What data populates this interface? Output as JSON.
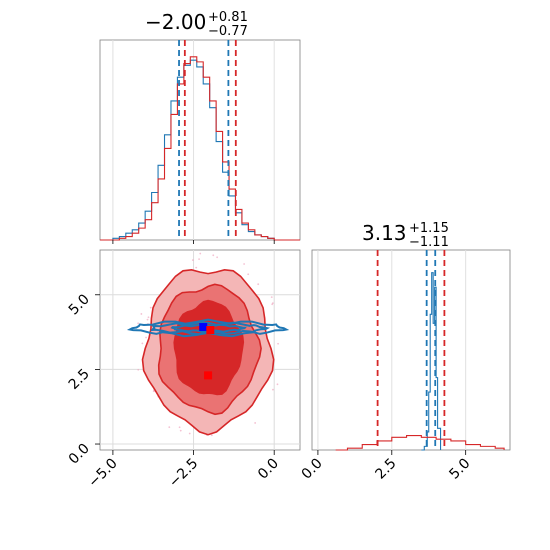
{
  "chart_data": [
    {
      "panel": "top-left",
      "type": "histogram",
      "title": {
        "value": "−2.00",
        "plus": "+0.81",
        "minus": "−0.77"
      },
      "xlim": [
        -5.4,
        0.8
      ],
      "grid": true,
      "bins": [
        -5.4,
        -5.2,
        -5.0,
        -4.8,
        -4.6,
        -4.4,
        -4.2,
        -4.0,
        -3.8,
        -3.6,
        -3.4,
        -3.2,
        -3.0,
        -2.8,
        -2.6,
        -2.4,
        -2.2,
        -2.0,
        -1.8,
        -1.6,
        -1.4,
        -1.2,
        -1.0,
        -0.8,
        -0.6,
        -0.4,
        -0.2,
        0.0,
        0.2,
        0.4,
        0.6,
        0.8
      ],
      "series": [
        {
          "color": "#1f77b4",
          "values": [
            0,
            0,
            1,
            2,
            4,
            6,
            10,
            17,
            28,
            44,
            62,
            82,
            96,
            103,
            106,
            102,
            92,
            78,
            58,
            40,
            26,
            16,
            9,
            5,
            3,
            2,
            1,
            0,
            0,
            0,
            0
          ]
        },
        {
          "color": "#d62728",
          "values": [
            0,
            0,
            0,
            1,
            2,
            4,
            7,
            12,
            22,
            36,
            54,
            74,
            92,
            104,
            108,
            105,
            96,
            82,
            64,
            46,
            30,
            18,
            10,
            6,
            3,
            2,
            1,
            0,
            0,
            0,
            0
          ]
        }
      ],
      "vlines": [
        {
          "x": -2.95,
          "color": "#1f77b4"
        },
        {
          "x": -2.77,
          "color": "#d62728"
        },
        {
          "x": -1.42,
          "color": "#1f77b4"
        },
        {
          "x": -1.19,
          "color": "#d62728"
        }
      ]
    },
    {
      "panel": "bottom-right",
      "type": "histogram",
      "title": {
        "value": "3.13",
        "plus": "+1.15",
        "minus": "−1.11"
      },
      "xlim": [
        -0.2,
        6.5
      ],
      "grid": true,
      "xticks": [
        "0.0",
        "2.5",
        "5.0"
      ],
      "series": [
        {
          "color": "#1f77b4",
          "points": [
            [
              3.5,
              0
            ],
            [
              3.6,
              2
            ],
            [
              3.7,
              10
            ],
            [
              3.75,
              32
            ],
            [
              3.8,
              75
            ],
            [
              3.85,
              98
            ],
            [
              3.9,
              70
            ],
            [
              3.95,
              90
            ],
            [
              4.0,
              40
            ],
            [
              4.05,
              12
            ],
            [
              4.15,
              0
            ]
          ]
        },
        {
          "color": "#d62728",
          "points": [
            [
              0.6,
              0
            ],
            [
              1.0,
              1
            ],
            [
              1.5,
              3
            ],
            [
              2.0,
              5
            ],
            [
              2.5,
              7
            ],
            [
              3.0,
              8
            ],
            [
              3.5,
              7
            ],
            [
              4.0,
              6
            ],
            [
              4.5,
              5
            ],
            [
              5.0,
              3
            ],
            [
              5.5,
              2
            ],
            [
              6.0,
              1
            ],
            [
              6.3,
              0
            ]
          ]
        }
      ],
      "vlines": [
        {
          "x": 2.02,
          "color": "#d62728"
        },
        {
          "x": 3.68,
          "color": "#1f77b4"
        },
        {
          "x": 3.97,
          "color": "#1f77b4"
        },
        {
          "x": 4.28,
          "color": "#d62728"
        }
      ]
    },
    {
      "panel": "bottom-left",
      "type": "contour",
      "xlim": [
        -5.4,
        0.8
      ],
      "ylim": [
        -0.2,
        6.5
      ],
      "grid": true,
      "xticks": [
        "−5.0",
        "−2.5",
        "0.0"
      ],
      "yticks": [
        "0.0",
        "2.5",
        "5.0"
      ],
      "red_contours": [
        {
          "center": [
            -2.05,
            3.2
          ],
          "rx": 1.95,
          "ry": 2.7,
          "fill": "#f4b6b6"
        },
        {
          "center": [
            -2.05,
            3.2
          ],
          "rx": 1.55,
          "ry": 2.1,
          "fill": "#ea7373"
        },
        {
          "center": [
            -2.05,
            3.2
          ],
          "rx": 1.05,
          "ry": 1.55,
          "fill": "#d62728"
        }
      ],
      "blue_contours": [
        {
          "center": [
            -2.05,
            3.88
          ],
          "rx": 2.35,
          "ry": 0.22
        },
        {
          "center": [
            -2.05,
            3.88
          ],
          "rx": 1.75,
          "ry": 0.16
        },
        {
          "center": [
            -2.05,
            3.88
          ],
          "rx": 1.1,
          "ry": 0.1
        }
      ],
      "markers": [
        {
          "x": -2.2,
          "y": 3.92,
          "color": "#0000ff"
        },
        {
          "x": -1.98,
          "y": 3.82,
          "color": "#ff0000"
        },
        {
          "x": -2.05,
          "y": 2.3,
          "color": "#ff0000"
        }
      ]
    }
  ]
}
